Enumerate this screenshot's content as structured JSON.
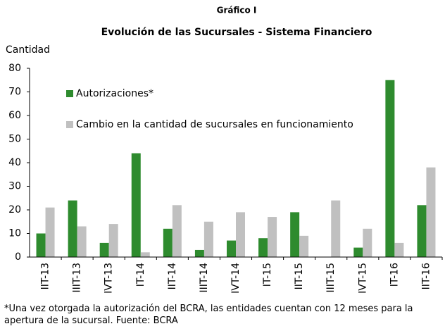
{
  "chart_data": {
    "type": "bar",
    "title": "Gráfico I",
    "subtitle": "Evolución de las Sucursales - Sistema Financiero",
    "y_label": "Cantidad",
    "categories": [
      "IIT-13",
      "IIIT-13",
      "IVT-13",
      "IT-14",
      "IIT-14",
      "IIIT-14",
      "IVT-14",
      "IT-15",
      "IIT-15",
      "IIIT-15",
      "IVT-15",
      "IT-16",
      "IIT-16"
    ],
    "series": [
      {
        "name": "Autorizaciones*",
        "color": "#2e8b2e",
        "values": [
          10,
          24,
          6,
          44,
          12,
          3,
          7,
          8,
          19,
          0,
          4,
          75,
          22
        ]
      },
      {
        "name": "Cambio en la cantidad de sucursales en funcionamiento",
        "color": "#c0c0c0",
        "values": [
          21,
          13,
          14,
          2,
          22,
          15,
          19,
          17,
          9,
          24,
          12,
          6,
          38
        ]
      }
    ],
    "ylim": [
      0,
      80
    ],
    "yticks": [
      0,
      10,
      20,
      30,
      40,
      50,
      60,
      70,
      80
    ],
    "grid": false,
    "legend": "upper left",
    "footnote": "*Una vez otorgada la autorización del BCRA, las entidades cuentan con 12 meses para la apertura de la sucursal. Fuente: BCRA"
  }
}
